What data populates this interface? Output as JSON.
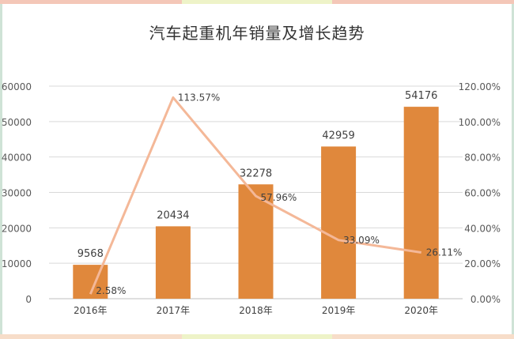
{
  "chart_data": {
    "type": "bar",
    "title": "汽车起重机年销量及增长趋势",
    "categories": [
      "2016年",
      "2017年",
      "2018年",
      "2019年",
      "2020年"
    ],
    "series": [
      {
        "type": "bar",
        "values": [
          9568,
          20434,
          32278,
          42959,
          54176
        ],
        "color": "#E0883C"
      },
      {
        "type": "line",
        "axis": "right",
        "values": [
          2.58,
          113.57,
          57.96,
          33.09,
          26.11
        ],
        "color": "#F4B898"
      }
    ],
    "value_labels_bar": [
      "9568",
      "20434",
      "32278",
      "42959",
      "54176"
    ],
    "value_labels_line": [
      "2.58%",
      "113.57%",
      "57.96%",
      "33.09%",
      "26.11%"
    ],
    "y_left": {
      "min": 0,
      "max": 60000,
      "ticks": [
        "0",
        "10000",
        "20000",
        "30000",
        "40000",
        "50000",
        "60000"
      ]
    },
    "y_right": {
      "min": 0,
      "max": 120,
      "ticks": [
        "0.00%",
        "20.00%",
        "40.00%",
        "60.00%",
        "80.00%",
        "100.00%",
        "120.00%"
      ]
    },
    "grid": true
  }
}
